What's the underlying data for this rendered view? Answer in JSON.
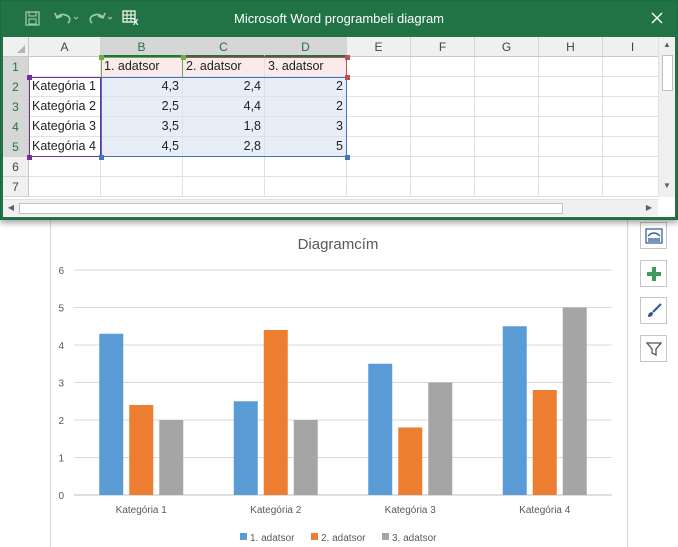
{
  "window": {
    "title": "Microsoft Word programbeli  diagram",
    "icons": [
      "save-icon",
      "undo-icon",
      "redo-icon",
      "edit-data-icon",
      "close-icon"
    ]
  },
  "spreadsheet": {
    "columns": [
      "A",
      "B",
      "C",
      "D",
      "E",
      "F",
      "G",
      "H",
      "I"
    ],
    "rows": [
      "1",
      "2",
      "3",
      "4",
      "5",
      "6",
      "7"
    ],
    "cells": [
      [
        "",
        "1. adatsor",
        "2. adatsor",
        "3. adatsor"
      ],
      [
        "Kategória 1",
        "4,3",
        "2,4",
        "2"
      ],
      [
        "Kategória 2",
        "2,5",
        "4,4",
        "2"
      ],
      [
        "Kategória 3",
        "3,5",
        "1,8",
        "3"
      ],
      [
        "Kategória 4",
        "4,5",
        "2,8",
        "5"
      ]
    ]
  },
  "chart_data": {
    "type": "bar",
    "title": "Diagramcím",
    "categories": [
      "Kategória 1",
      "Kategória 2",
      "Kategória 3",
      "Kategória 4"
    ],
    "series": [
      {
        "name": "1. adatsor",
        "values": [
          4.3,
          2.5,
          3.5,
          4.5
        ],
        "color": "#5b9bd5"
      },
      {
        "name": "2. adatsor",
        "values": [
          2.4,
          4.4,
          1.8,
          2.8
        ],
        "color": "#ed7d31"
      },
      {
        "name": "3. adatsor",
        "values": [
          2,
          2,
          3,
          5
        ],
        "color": "#a5a5a5"
      }
    ],
    "ylim": [
      0,
      6
    ],
    "yticks": [
      "0",
      "1",
      "2",
      "3",
      "4",
      "5",
      "6"
    ],
    "grid": true,
    "legend": "bottom"
  },
  "side_tools": [
    "chart-layout-icon",
    "chart-elements-plus-icon",
    "chart-styles-brush-icon",
    "chart-filter-icon"
  ],
  "colors": {
    "excel_green": "#217346",
    "series1_range": "#4472c4",
    "series_header_range": "#c0504d",
    "category_range": "#7030a0",
    "header_range": "#70ad47"
  }
}
